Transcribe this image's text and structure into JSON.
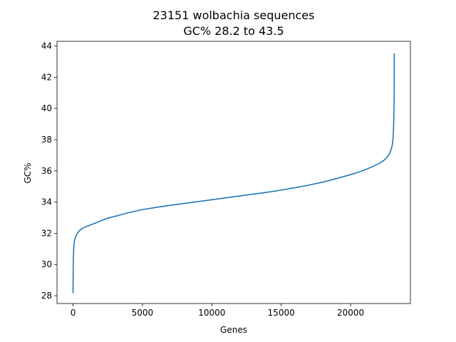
{
  "chart_data": {
    "type": "line",
    "title": "23151 wolbachia sequences",
    "subtitle": "GC% 28.2 to 43.5",
    "xlabel": "Genes",
    "ylabel": "GC%",
    "xlim": [
      -1158,
      24309
    ],
    "ylim": [
      27.5,
      44.3
    ],
    "xticks": [
      0,
      5000,
      10000,
      15000,
      20000
    ],
    "yticks": [
      28,
      30,
      32,
      34,
      36,
      38,
      40,
      42,
      44
    ],
    "grid": false,
    "legend": "none",
    "series": [
      {
        "color": "#1f77b4",
        "x": [
          0,
          3,
          10,
          20,
          40,
          60,
          80,
          120,
          180,
          250,
          350,
          500,
          700,
          1000,
          1500,
          2000,
          2500,
          3000,
          4000,
          5000,
          6000,
          7000,
          8000,
          9000,
          10000,
          11000,
          12000,
          13000,
          14000,
          15000,
          16000,
          17000,
          18000,
          19000,
          20000,
          20500,
          21000,
          21500,
          22000,
          22300,
          22500,
          22700,
          22850,
          22950,
          23020,
          23060,
          23090,
          23110,
          23130,
          23140,
          23145,
          23150
        ],
        "y": [
          28.2,
          29.0,
          29.8,
          30.4,
          30.9,
          31.2,
          31.4,
          31.6,
          31.75,
          31.9,
          32.05,
          32.2,
          32.33,
          32.45,
          32.62,
          32.8,
          32.97,
          33.08,
          33.32,
          33.52,
          33.66,
          33.79,
          33.91,
          34.03,
          34.15,
          34.27,
          34.39,
          34.51,
          34.63,
          34.77,
          34.92,
          35.09,
          35.28,
          35.51,
          35.76,
          35.9,
          36.05,
          36.24,
          36.45,
          36.6,
          36.75,
          36.95,
          37.2,
          37.45,
          37.75,
          38.1,
          38.6,
          39.3,
          40.2,
          41.0,
          42.0,
          43.5
        ]
      }
    ]
  }
}
